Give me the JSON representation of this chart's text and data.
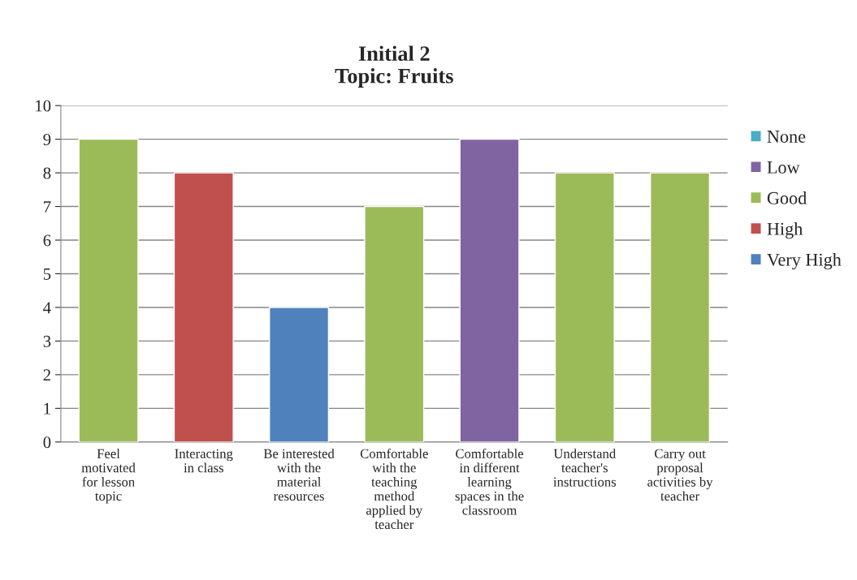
{
  "chart_data": {
    "type": "bar",
    "title": "Initial 2\nTopic: Fruits",
    "categories": [
      "Feel\nmotivated\nfor lesson\ntopic",
      "Interacting\nin class",
      "Be interested\nwith the\nmaterial\nresources",
      "Comfortable\nwith the\nteaching\nmethod\napplied by\nteacher",
      "Comfortable\nin different\nlearning\nspaces in the\nclassroom",
      "Understand\nteacher's\ninstructions",
      "Carry out\nproposal\nactivities by\nteacher"
    ],
    "stacked": true,
    "series": [
      {
        "name": "None",
        "color": "#4bacc6",
        "values": [
          null,
          null,
          null,
          null,
          null,
          null,
          null
        ]
      },
      {
        "name": "Low",
        "color": "#8064a2",
        "values": [
          null,
          null,
          null,
          null,
          9,
          null,
          null
        ]
      },
      {
        "name": "Good",
        "color": "#9bbb59",
        "values": [
          9,
          null,
          null,
          7,
          null,
          8,
          8
        ]
      },
      {
        "name": "High",
        "color": "#c0504d",
        "values": [
          null,
          8,
          null,
          null,
          null,
          null,
          null
        ]
      },
      {
        "name": "Very High",
        "color": "#4f81bd",
        "values": [
          null,
          null,
          4,
          null,
          null,
          null,
          null
        ]
      }
    ],
    "ylim": [
      0,
      10
    ],
    "yticks": [
      0,
      1,
      2,
      3,
      4,
      5,
      6,
      7,
      8,
      9,
      10
    ],
    "grid": "y",
    "legend": "right"
  }
}
